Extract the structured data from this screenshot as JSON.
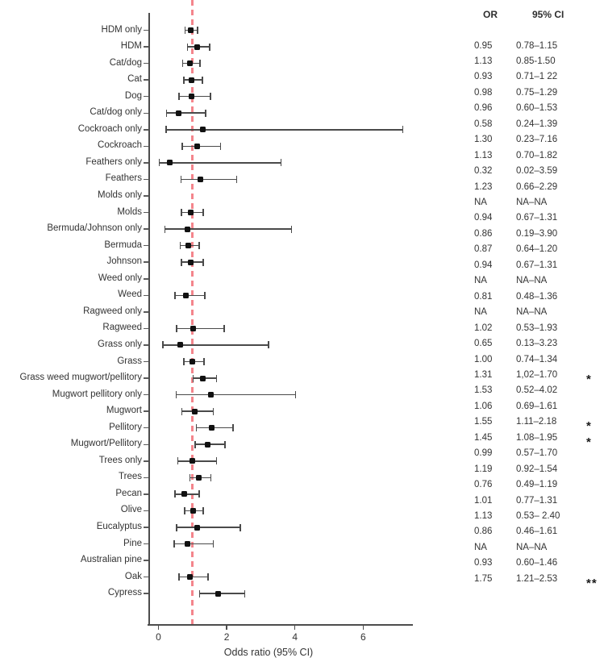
{
  "chart_data": {
    "type": "forest",
    "title": "",
    "xlabel": "Odds ratio (95% CI)",
    "column_headers": {
      "or": "OR",
      "ci": "95% CI"
    },
    "x_ticks": [
      {
        "label": "0",
        "value": 0
      },
      {
        "label": "2",
        "value": 2
      },
      {
        "label": "4",
        "value": 4
      },
      {
        "label": "6",
        "value": 6
      }
    ],
    "xlim": [
      -0.27,
      7.5
    ],
    "reference_line_value": 1.0,
    "grid": false,
    "rows": [
      {
        "label": "HDM only",
        "or_text": "0.95",
        "ci_text": "0.78–1.15",
        "sig": "",
        "or": 0.95,
        "lo": 0.78,
        "hi": 1.15
      },
      {
        "label": "HDM",
        "or_text": "1.13",
        "ci_text": "0.85-1.50",
        "sig": "",
        "or": 1.13,
        "lo": 0.85,
        "hi": 1.5
      },
      {
        "label": "Cat/dog",
        "or_text": "0.93",
        "ci_text": "0.71–1 22",
        "sig": "",
        "or": 0.93,
        "lo": 0.71,
        "hi": 1.22
      },
      {
        "label": "Cat",
        "or_text": "0.98",
        "ci_text": "0.75–1.29",
        "sig": "",
        "or": 0.98,
        "lo": 0.75,
        "hi": 1.29
      },
      {
        "label": "Dog",
        "or_text": "0.96",
        "ci_text": "0.60–1.53",
        "sig": "",
        "or": 0.96,
        "lo": 0.6,
        "hi": 1.53
      },
      {
        "label": "Cat/dog only",
        "or_text": "0.58",
        "ci_text": "0.24–1.39",
        "sig": "",
        "or": 0.58,
        "lo": 0.24,
        "hi": 1.39
      },
      {
        "label": "Cockroach only",
        "or_text": "1.30",
        "ci_text": "0.23–7.16",
        "sig": "",
        "or": 1.3,
        "lo": 0.23,
        "hi": 7.16
      },
      {
        "label": "Cockroach",
        "or_text": "1.13",
        "ci_text": "0.70–1.82",
        "sig": "",
        "or": 1.13,
        "lo": 0.7,
        "hi": 1.82
      },
      {
        "label": "Feathers only",
        "or_text": "0.32",
        "ci_text": "0.02–3.59",
        "sig": "",
        "or": 0.32,
        "lo": 0.02,
        "hi": 3.59
      },
      {
        "label": "Feathers",
        "or_text": "1.23",
        "ci_text": "0.66–2.29",
        "sig": "",
        "or": 1.23,
        "lo": 0.66,
        "hi": 2.29
      },
      {
        "label": "Molds only",
        "or_text": "NA",
        "ci_text": "NA–NA",
        "sig": "",
        "or": null,
        "lo": null,
        "hi": null
      },
      {
        "label": "Molds",
        "or_text": "0.94",
        "ci_text": "0.67–1.31",
        "sig": "",
        "or": 0.94,
        "lo": 0.67,
        "hi": 1.31
      },
      {
        "label": "Bermuda/Johnson only",
        "or_text": "0.86",
        "ci_text": "0.19–3.90",
        "sig": "",
        "or": 0.86,
        "lo": 0.19,
        "hi": 3.9
      },
      {
        "label": "Bermuda",
        "or_text": "0.87",
        "ci_text": "0.64–1.20",
        "sig": "",
        "or": 0.87,
        "lo": 0.64,
        "hi": 1.2
      },
      {
        "label": "Johnson",
        "or_text": "0.94",
        "ci_text": "0.67–1.31",
        "sig": "",
        "or": 0.94,
        "lo": 0.67,
        "hi": 1.31
      },
      {
        "label": "Weed only",
        "or_text": "NA",
        "ci_text": "NA–NA",
        "sig": "",
        "or": null,
        "lo": null,
        "hi": null
      },
      {
        "label": "Weed",
        "or_text": "0.81",
        "ci_text": "0.48–1.36",
        "sig": "",
        "or": 0.81,
        "lo": 0.48,
        "hi": 1.36
      },
      {
        "label": "Ragweed only",
        "or_text": "NA",
        "ci_text": "NA–NA",
        "sig": "",
        "or": null,
        "lo": null,
        "hi": null
      },
      {
        "label": "Ragweed",
        "or_text": "1.02",
        "ci_text": "0.53–1.93",
        "sig": "",
        "or": 1.02,
        "lo": 0.53,
        "hi": 1.93
      },
      {
        "label": "Grass only",
        "or_text": "0.65",
        "ci_text": "0.13–3.23",
        "sig": "",
        "or": 0.65,
        "lo": 0.13,
        "hi": 3.23
      },
      {
        "label": "Grass",
        "or_text": "1.00",
        "ci_text": "0.74–1.34",
        "sig": "",
        "or": 1.0,
        "lo": 0.74,
        "hi": 1.34
      },
      {
        "label": "Grass weed mugwort/pellitory",
        "or_text": "1.31",
        "ci_text": "1,02–1.70",
        "sig": "*",
        "or": 1.31,
        "lo": 1.02,
        "hi": 1.7
      },
      {
        "label": "Mugwort pellitory only",
        "or_text": "1.53",
        "ci_text": "0.52–4.02",
        "sig": "",
        "or": 1.53,
        "lo": 0.52,
        "hi": 4.02
      },
      {
        "label": "Mugwort",
        "or_text": "1.06",
        "ci_text": "0.69–1.61",
        "sig": "",
        "or": 1.06,
        "lo": 0.69,
        "hi": 1.61
      },
      {
        "label": "Pellitory",
        "or_text": "1.55",
        "ci_text": "1.11–2.18",
        "sig": "*",
        "or": 1.55,
        "lo": 1.11,
        "hi": 2.18
      },
      {
        "label": "Mugwort/Pellitory",
        "or_text": "1.45",
        "ci_text": "1.08–1.95",
        "sig": "*",
        "or": 1.45,
        "lo": 1.08,
        "hi": 1.95
      },
      {
        "label": "Trees only",
        "or_text": "0.99",
        "ci_text": "0.57–1.70",
        "sig": "",
        "or": 0.99,
        "lo": 0.57,
        "hi": 1.7
      },
      {
        "label": "Trees",
        "or_text": "1.19",
        "ci_text": "0.92–1.54",
        "sig": "",
        "or": 1.19,
        "lo": 0.92,
        "hi": 1.54
      },
      {
        "label": "Pecan",
        "or_text": "0.76",
        "ci_text": "0.49–1.19",
        "sig": "",
        "or": 0.76,
        "lo": 0.49,
        "hi": 1.19
      },
      {
        "label": "Olive",
        "or_text": "1.01",
        "ci_text": "0.77–1.31",
        "sig": "",
        "or": 1.01,
        "lo": 0.77,
        "hi": 1.31
      },
      {
        "label": "Eucalyptus",
        "or_text": "1.13",
        "ci_text": "0.53– 2.40",
        "sig": "",
        "or": 1.13,
        "lo": 0.53,
        "hi": 2.4
      },
      {
        "label": "Pine",
        "or_text": "0.86",
        "ci_text": "0.46–1.61",
        "sig": "",
        "or": 0.86,
        "lo": 0.46,
        "hi": 1.61
      },
      {
        "label": "Australian pine",
        "or_text": "NA",
        "ci_text": "NA–NA",
        "sig": "",
        "or": null,
        "lo": null,
        "hi": null
      },
      {
        "label": "Oak",
        "or_text": "0.93",
        "ci_text": "0.60–1.46",
        "sig": "",
        "or": 0.93,
        "lo": 0.6,
        "hi": 1.46
      },
      {
        "label": "Cypress",
        "or_text": "1.75",
        "ci_text": "1.21–2.53",
        "sig": "**",
        "or": 1.75,
        "lo": 1.21,
        "hi": 2.53
      }
    ]
  },
  "colors": {
    "reference_line": "#f4858c",
    "axis": "#4d4d4d",
    "bar": "#4a4a4a",
    "marker": "#111111",
    "text": "#333333"
  }
}
